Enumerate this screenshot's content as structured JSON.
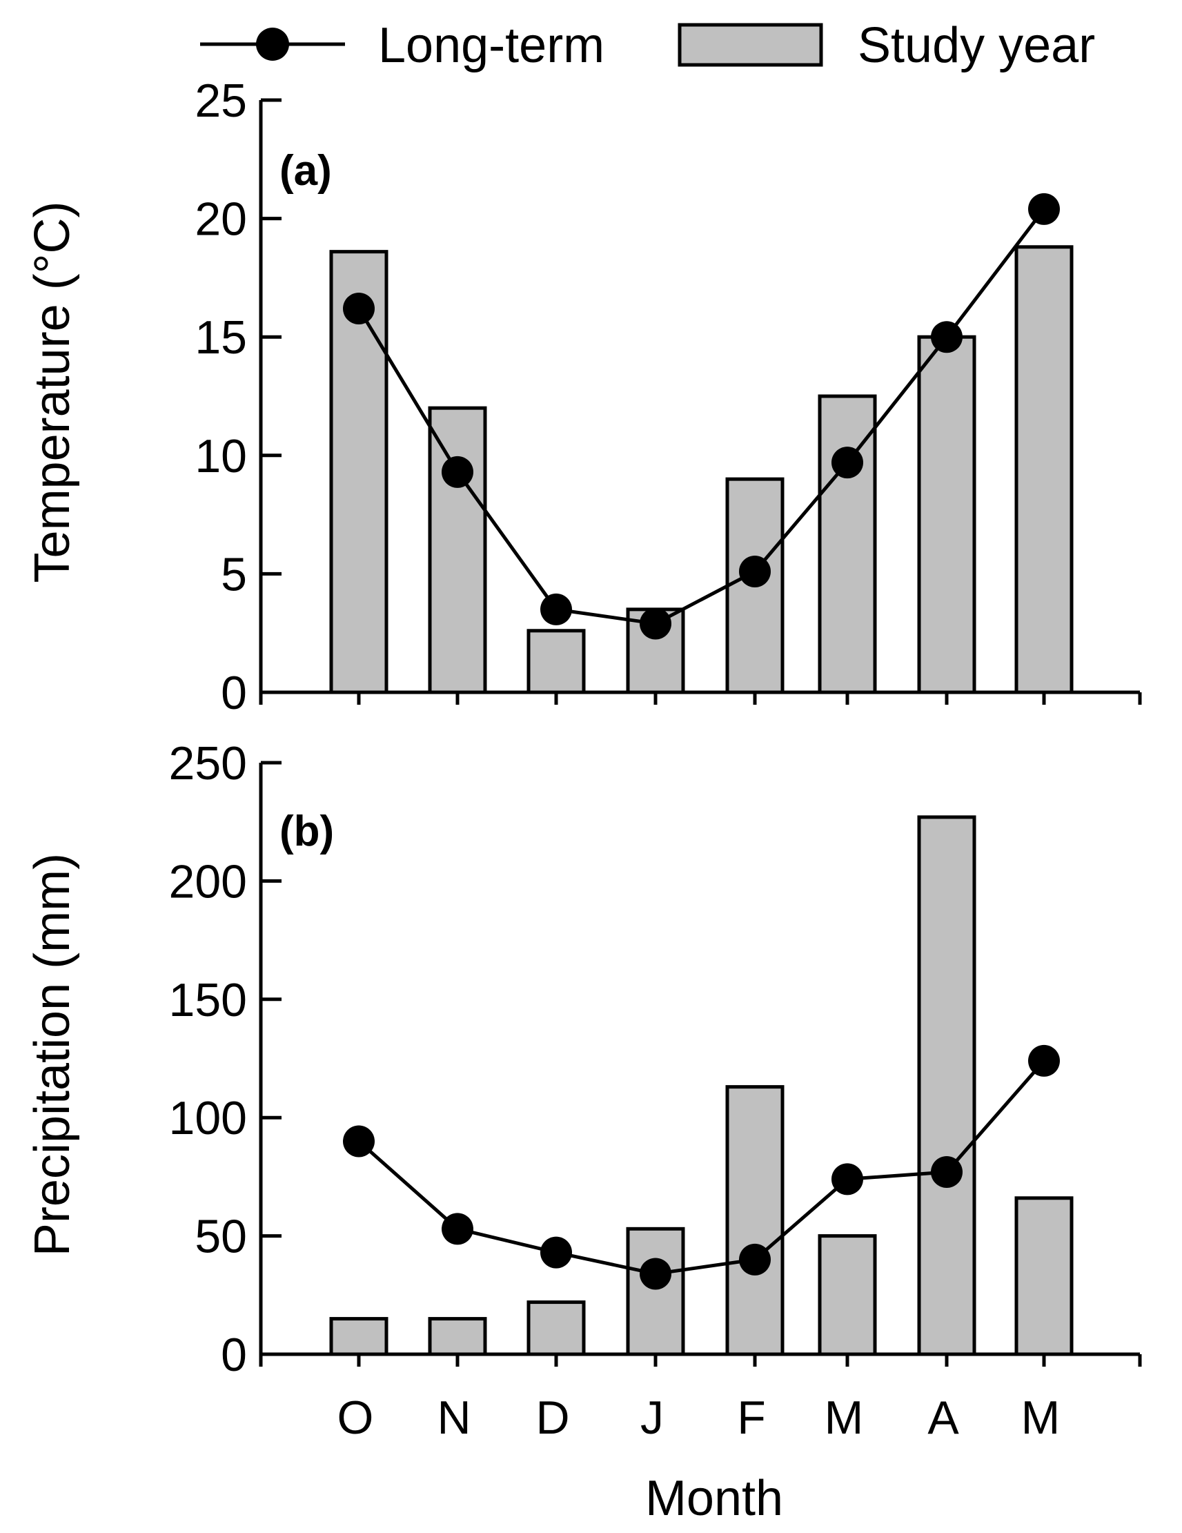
{
  "legend": {
    "line_label": "Long-term",
    "bar_label": "Study year"
  },
  "colors": {
    "bar_fill": "#c0c0c0",
    "stroke": "#000000",
    "background": "#ffffff"
  },
  "xlabel": "Month",
  "chart_data": [
    {
      "type": "bar",
      "panel_label": "(a)",
      "title": "",
      "xlabel": "Month",
      "ylabel": "Temperature (°C)",
      "ylim": [
        0,
        25
      ],
      "yticks": [
        "0",
        "5",
        "10",
        "15",
        "20",
        "25"
      ],
      "grid": false,
      "legend_position": "top",
      "categories": [
        "O",
        "N",
        "D",
        "J",
        "F",
        "M",
        "A",
        "M"
      ],
      "series": [
        {
          "name": "Study year",
          "kind": "bar",
          "values": [
            18.6,
            12.0,
            2.6,
            3.5,
            9.0,
            12.5,
            15.0,
            18.8
          ]
        },
        {
          "name": "Long-term",
          "kind": "line",
          "values": [
            16.2,
            9.3,
            3.5,
            2.9,
            5.1,
            9.7,
            15.0,
            20.4
          ]
        }
      ]
    },
    {
      "type": "bar",
      "panel_label": "(b)",
      "title": "",
      "xlabel": "Month",
      "ylabel": "Precipitation (mm)",
      "ylim": [
        0,
        250
      ],
      "yticks": [
        "0",
        "50",
        "100",
        "150",
        "200",
        "250"
      ],
      "grid": false,
      "legend_position": "top",
      "categories": [
        "O",
        "N",
        "D",
        "J",
        "F",
        "M",
        "A",
        "M"
      ],
      "series": [
        {
          "name": "Study year",
          "kind": "bar",
          "values": [
            15,
            15,
            22,
            53,
            113,
            50,
            227,
            66
          ]
        },
        {
          "name": "Long-term",
          "kind": "line",
          "values": [
            90,
            53,
            43,
            34,
            40,
            74,
            77,
            124
          ]
        }
      ]
    }
  ]
}
